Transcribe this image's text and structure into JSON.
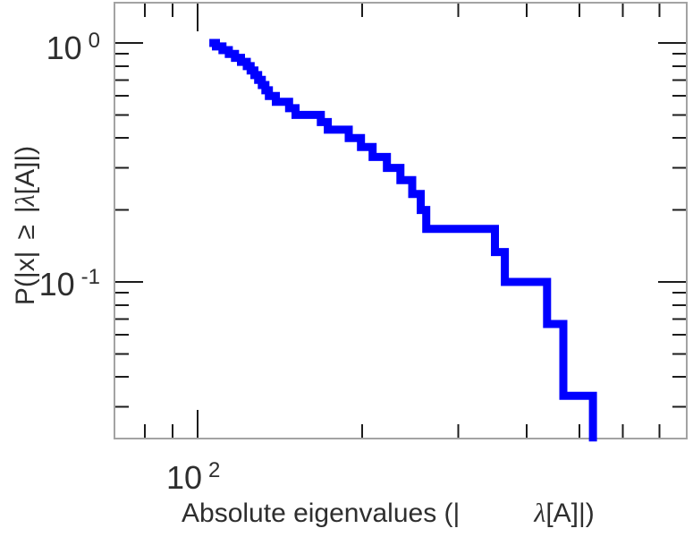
{
  "style": {
    "background": "#ffffff",
    "curve_color": "#0000ff",
    "frame_color": "#a3a3a3",
    "tick_color": "#1c1c1c",
    "text_color": "#2e2e2e"
  },
  "labels": {
    "x_tick": {
      "base": "10",
      "exp": "2"
    },
    "y_tick_top": {
      "base": "10",
      "exp": "0"
    },
    "y_tick_bottom": {
      "base": "10",
      "exp": "-1"
    },
    "x_axis": {
      "prefix": "Absolute eigenvalues (|",
      "lambda": "λ",
      "suffix": "[A]|)"
    },
    "y_axis": {
      "prefix": "P(|x|",
      "geq": "≥",
      "bar": "|",
      "lambda": "λ",
      "suffix": "[A]|)"
    }
  },
  "chart_data": {
    "type": "line",
    "subtype": "ccdf-step",
    "title": "",
    "xlabel": "Absolute eigenvalues (|λ[A]|)",
    "ylabel": "P(|x| ≥ |λ[A]|)",
    "x_scale": "log",
    "y_scale": "log",
    "xlim": [
      70.4,
      785.5
    ],
    "ylim": [
      0.0221,
      1.474
    ],
    "grid": false,
    "legend": false,
    "x_major_ticks": [
      100
    ],
    "x_minor_ticks": [
      80,
      90,
      200,
      300,
      400,
      500,
      600,
      700
    ],
    "y_major_ticks": [
      1.0,
      0.1
    ],
    "y_minor_ticks": [
      0.9,
      0.8,
      0.7,
      0.6,
      0.5,
      0.4,
      0.3,
      0.2,
      0.09,
      0.08,
      0.07,
      0.06,
      0.05,
      0.04,
      0.03
    ],
    "n_eigenvalues": 30,
    "eigenvalues": [
      108,
      111,
      114,
      117,
      120,
      123,
      125,
      127,
      129,
      131,
      133,
      135,
      139,
      147,
      151,
      168,
      173,
      189,
      199,
      209,
      222,
      235,
      247,
      256,
      262,
      350,
      365,
      436,
      467,
      529
    ],
    "ccdf_levels": [
      1.0,
      0.9667,
      0.9333,
      0.9,
      0.8667,
      0.8333,
      0.8,
      0.7667,
      0.7333,
      0.7,
      0.6667,
      0.6333,
      0.6,
      0.5667,
      0.5333,
      0.5,
      0.4667,
      0.4333,
      0.4,
      0.3667,
      0.3333,
      0.3,
      0.2667,
      0.2333,
      0.2,
      0.1667,
      0.1333,
      0.1,
      0.0667,
      0.0333
    ],
    "curve_start_x": 105,
    "curve_end_p": 0.0215
  }
}
